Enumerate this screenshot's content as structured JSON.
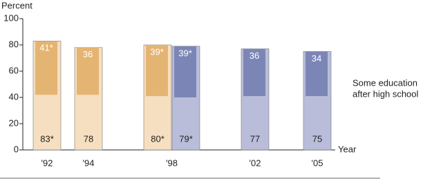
{
  "chart_data": {
    "type": "bar",
    "y_label": "Percent",
    "x_label": "Year",
    "categories": [
      "'92",
      "'94",
      "'98",
      null,
      "'02",
      "'05"
    ],
    "values": [
      83,
      78,
      80,
      79,
      77,
      75
    ],
    "value_labels": [
      "83*",
      "78",
      "80*",
      "79*",
      "77",
      "75"
    ],
    "inner_values": [
      41,
      36,
      39,
      39,
      36,
      34
    ],
    "inner_value_labels": [
      "41*",
      "36",
      "39*",
      "39*",
      "36",
      "34"
    ],
    "colors": [
      "#f6dfc0",
      "#f6dfc0",
      "#f6dfc0",
      "#b9bdd9",
      "#b9bdd9",
      "#b9bdd9"
    ],
    "inner_colors": [
      "#e4b473",
      "#e4b473",
      "#e4b473",
      "#7c86b6",
      "#7c86b6",
      "#7c86b6"
    ],
    "annotation": [
      "Some education",
      "after high school"
    ],
    "ylim": [
      0,
      100
    ],
    "yticks": [
      0,
      20,
      40,
      60,
      80,
      100
    ]
  }
}
